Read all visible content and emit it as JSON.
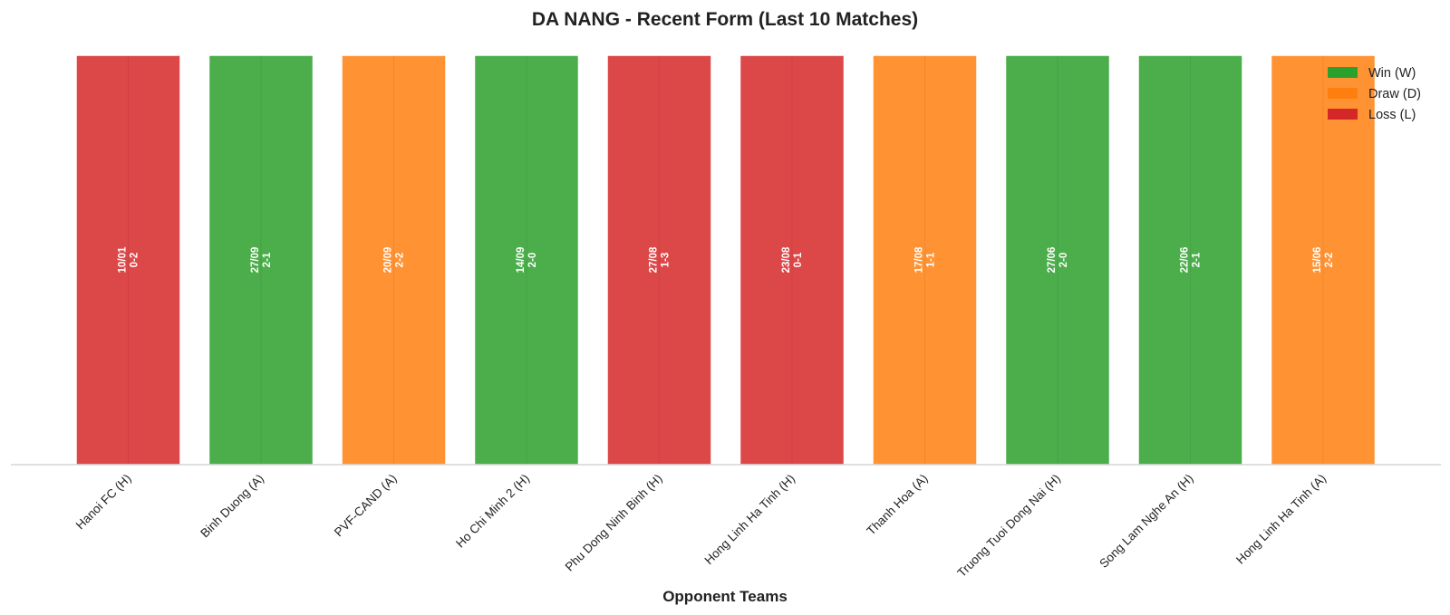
{
  "chart_data": {
    "type": "bar",
    "title": "DA NANG - Recent Form (Last 10 Matches)",
    "xlabel": "Opponent Teams",
    "ylabel": "",
    "ylim": [
      0,
      1
    ],
    "grid": false,
    "legend_position": "top-right",
    "categories": [
      "Hanoi FC (H)",
      "Binh Duong (A)",
      "PVF-CAND (A)",
      "Ho Chi Minh 2 (H)",
      "Phu Dong Ninh Binh (H)",
      "Hong Linh Ha Tinh (H)",
      "Thanh Hoa (A)",
      "Truong Tuoi Dong Nai (H)",
      "Song Lam Nghe An (H)",
      "Hong Linh Ha Tinh (A)"
    ],
    "values": [
      1,
      1,
      1,
      1,
      1,
      1,
      1,
      1,
      1,
      1
    ],
    "results": [
      "L",
      "W",
      "D",
      "W",
      "L",
      "L",
      "D",
      "W",
      "W",
      "D"
    ],
    "dates": [
      "10/01",
      "27/09",
      "20/09",
      "14/09",
      "27/08",
      "23/08",
      "17/08",
      "27/06",
      "22/06",
      "15/06"
    ],
    "scores": [
      "0-2",
      "2-1",
      "2-2",
      "2-0",
      "1-3",
      "0-1",
      "1-1",
      "2-0",
      "2-1",
      "2-2"
    ],
    "legend": [
      {
        "key": "W",
        "label": "Win (W)",
        "color": "#2ca02c"
      },
      {
        "key": "D",
        "label": "Draw (D)",
        "color": "#ff7f0e"
      },
      {
        "key": "L",
        "label": "Loss (L)",
        "color": "#d62728"
      }
    ]
  }
}
